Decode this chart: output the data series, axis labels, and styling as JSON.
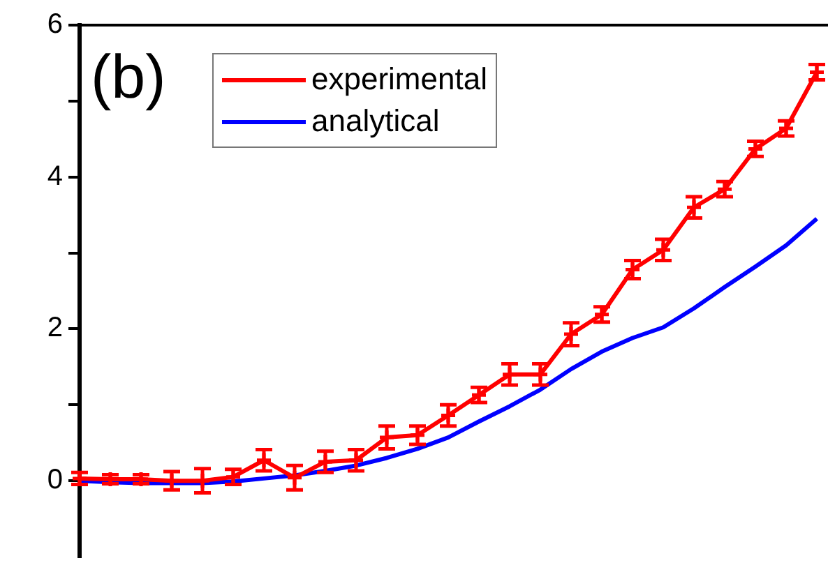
{
  "chart_data": {
    "type": "line",
    "annotations": [
      "(b)"
    ],
    "categories": [
      null,
      null,
      null,
      null,
      null,
      null,
      null,
      null,
      null,
      null,
      null,
      null,
      null,
      null,
      null,
      null,
      null,
      null,
      null,
      null,
      null,
      null,
      null,
      null,
      null
    ],
    "ylim": [
      -1,
      6
    ],
    "yticks": [
      0,
      {
        "value": 1,
        "label": null
      },
      2,
      {
        "value": 3,
        "label": null
      },
      4,
      {
        "value": 5,
        "label": null
      },
      6
    ],
    "tick_labels": "y",
    "grid": false,
    "legend": "top left",
    "series": [
      {
        "name": "experimental",
        "color": "#ff0000",
        "marker": "cross",
        "values": [
          0.03,
          0.02,
          0.02,
          0,
          0,
          0.05,
          0.27,
          0.04,
          0.25,
          0.27,
          0.57,
          0.6,
          0.86,
          1.13,
          1.4,
          1.4,
          1.93,
          2.19,
          2.78,
          3.04,
          3.6,
          3.84,
          4.37,
          4.64,
          5.38
        ],
        "errors": [
          0.08,
          0.06,
          0.06,
          0.12,
          0.16,
          0.1,
          0.14,
          0.16,
          0.14,
          0.14,
          0.15,
          0.12,
          0.14,
          0.1,
          0.14,
          0.14,
          0.15,
          0.1,
          0.12,
          0.14,
          0.14,
          0.1,
          0.1,
          0.1,
          0.1
        ]
      },
      {
        "name": "analytical",
        "color": "#0000ff",
        "marker": "none",
        "values": [
          0,
          -0.02,
          -0.03,
          -0.03,
          -0.03,
          -0.01,
          0.03,
          0.07,
          0.13,
          0.2,
          0.3,
          0.42,
          0.57,
          0.78,
          0.98,
          1.2,
          1.47,
          1.7,
          1.88,
          2.02,
          2.27,
          2.55,
          2.82,
          3.1,
          3.45
        ]
      }
    ]
  }
}
